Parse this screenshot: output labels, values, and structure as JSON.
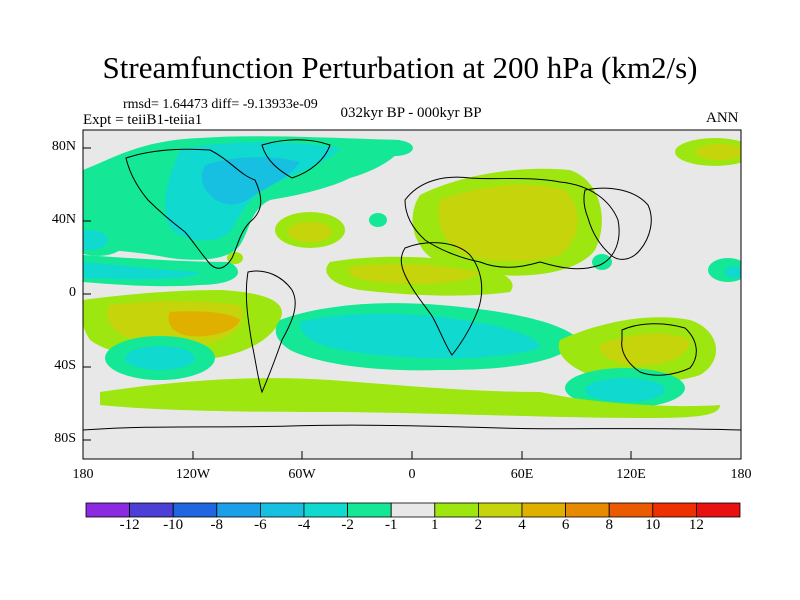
{
  "title": "Streamfunction Perturbation at 200 hPa (km2/s)",
  "stats_line": "rmsd= 1.64473 diff= -9.13933e-09",
  "experiment": "Expt = teiiB1-teiia1",
  "period": "032kyr BP - 000kyr BP",
  "season": "ANN",
  "lat_labels": [
    "80N",
    "40N",
    "0",
    "40S",
    "80S"
  ],
  "lon_labels": [
    "180",
    "120W",
    "60W",
    "0",
    "60E",
    "120E",
    "180"
  ],
  "colorbar_labels": [
    "-12",
    "-10",
    "-8",
    "-6",
    "-4",
    "-2",
    "-1",
    "1",
    "2",
    "4",
    "6",
    "8",
    "10",
    "12"
  ],
  "colors": {
    "c_lt_m12": "#8a2be2",
    "c_m12_m10": "#4b3fd6",
    "c_m10_m8": "#1f66e0",
    "c_m8_m6": "#1aa0e8",
    "c_m6_m4": "#17c0e0",
    "c_m4_m2": "#10d9d0",
    "c_m2_m1": "#14e896",
    "c_m1_1": "#e8e8e8",
    "c_1_2": "#9ee60f",
    "c_2_4": "#c6d40c",
    "c_4_6": "#e0b000",
    "c_6_8": "#e88a00",
    "c_8_10": "#ec5a00",
    "c_10_12": "#ee3000",
    "c_gt_12": "#e81010"
  },
  "colorbar_colors": [
    "#8a2be2",
    "#4b3fd6",
    "#1f66e0",
    "#1aa0e8",
    "#17c0e0",
    "#10d9d0",
    "#14e896",
    "#e8e8e8",
    "#9ee60f",
    "#c6d40c",
    "#e0b000",
    "#e88a00",
    "#ec5a00",
    "#ee3000",
    "#e81010"
  ]
}
